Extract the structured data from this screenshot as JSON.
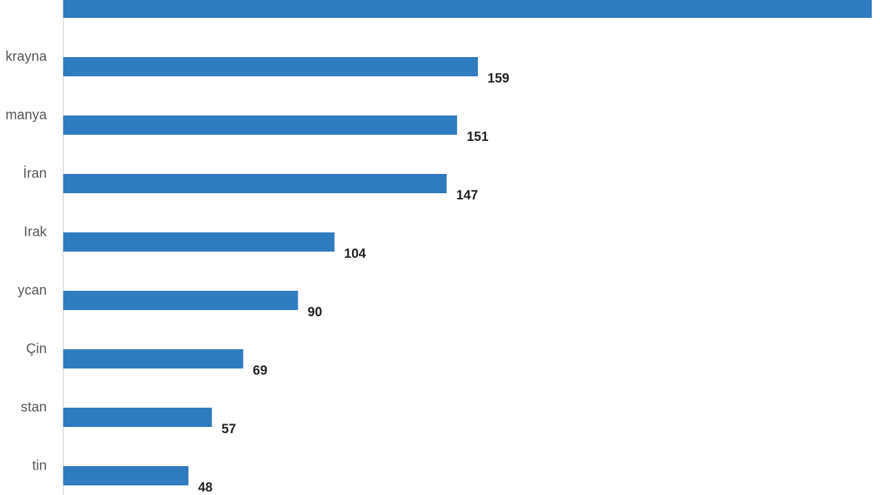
{
  "chart_data": {
    "type": "bar",
    "orientation": "horizontal",
    "categories": [
      null,
      "krayna",
      "manya",
      "İran",
      "Irak",
      "ycan",
      "Çin",
      "stan",
      "tin"
    ],
    "values": [
      310,
      159,
      151,
      147,
      104,
      90,
      69,
      57,
      48
    ],
    "color": "#2f7bbf"
  }
}
